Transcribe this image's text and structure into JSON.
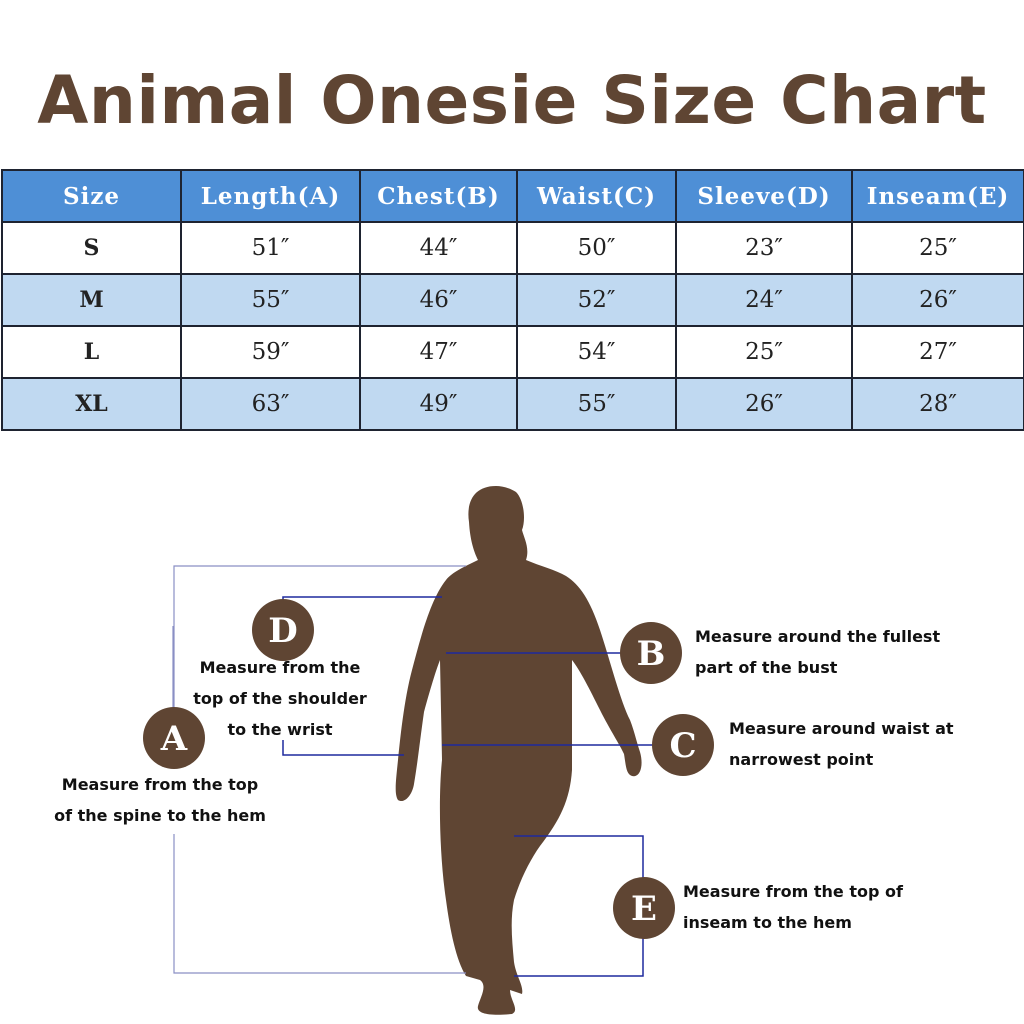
{
  "title": "Animal Onesie Size Chart",
  "table": {
    "headers": [
      "Size",
      "Length(A)",
      "Chest(B)",
      "Waist(C)",
      "Sleeve(D)",
      "Inseam(E)"
    ],
    "rows": [
      {
        "size": "S",
        "cells": [
          "51″",
          "44″",
          "50″",
          "23″",
          "25″"
        ]
      },
      {
        "size": "M",
        "cells": [
          "55″",
          "46″",
          "52″",
          "24″",
          "26″"
        ]
      },
      {
        "size": "L",
        "cells": [
          "59″",
          "47″",
          "54″",
          "25″",
          "27″"
        ]
      },
      {
        "size": "XL",
        "cells": [
          "63″",
          "49″",
          "55″",
          "26″",
          "28″"
        ]
      }
    ]
  },
  "measurements": {
    "A": {
      "letter": "A",
      "lines": [
        "Measure from the top",
        "of the spine to the hem"
      ]
    },
    "B": {
      "letter": "B",
      "lines": [
        "Measure around the fullest",
        "part of the bust"
      ]
    },
    "C": {
      "letter": "C",
      "lines": [
        "Measure around waist at",
        "narrowest point"
      ]
    },
    "D": {
      "letter": "D",
      "lines": [
        "Measure from the",
        "top of the shoulder",
        "to the wrist"
      ]
    },
    "E": {
      "letter": "E",
      "lines": [
        "Measure from the top of",
        "inseam to the hem"
      ]
    }
  },
  "colors": {
    "title": "#5f4533",
    "header_bg": "#4e8fd6",
    "alt_row_bg": "#c0d9f1",
    "silhouette": "#5f4533",
    "badge": "#5f4533",
    "guide_line": "#1f2a9e",
    "frame_line": "#8a8fc4"
  }
}
